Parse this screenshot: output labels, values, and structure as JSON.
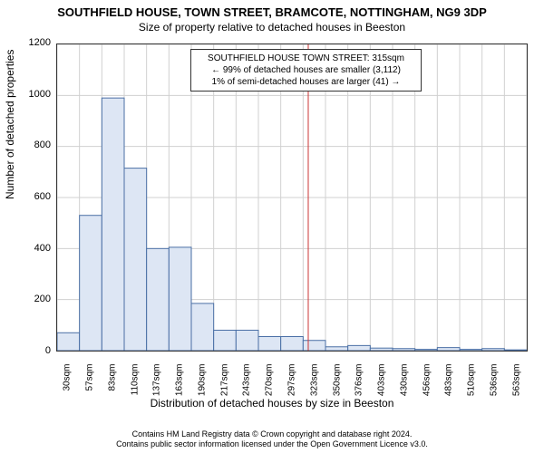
{
  "title": "SOUTHFIELD HOUSE, TOWN STREET, BRAMCOTE, NOTTINGHAM, NG9 3DP",
  "subtitle": "Size of property relative to detached houses in Beeston",
  "ylabel": "Number of detached properties",
  "xlabel": "Distribution of detached houses by size in Beeston",
  "annotation": {
    "line1": "SOUTHFIELD HOUSE TOWN STREET: 315sqm",
    "line2": "← 99% of detached houses are smaller (3,112)",
    "line3": "1% of semi-detached houses are larger (41) →"
  },
  "chart": {
    "type": "histogram",
    "ylim": [
      0,
      1200
    ],
    "ytick_step": 200,
    "bar_fill": "#dde6f4",
    "bar_stroke": "#4a6fa5",
    "background": "#ffffff",
    "grid_color": "#d0d0d0",
    "marker_color": "#cc3333",
    "marker_x": 315,
    "x_categories": [
      "30sqm",
      "57sqm",
      "83sqm",
      "110sqm",
      "137sqm",
      "163sqm",
      "190sqm",
      "217sqm",
      "243sqm",
      "270sqm",
      "297sqm",
      "323sqm",
      "350sqm",
      "376sqm",
      "403sqm",
      "430sqm",
      "456sqm",
      "483sqm",
      "510sqm",
      "536sqm",
      "563sqm"
    ],
    "values": [
      70,
      530,
      990,
      715,
      400,
      405,
      185,
      80,
      80,
      55,
      55,
      40,
      15,
      20,
      10,
      8,
      5,
      12,
      5,
      8,
      3
    ]
  },
  "footer": {
    "line1": "Contains HM Land Registry data © Crown copyright and database right 2024.",
    "line2": "Contains public sector information licensed under the Open Government Licence v3.0."
  }
}
